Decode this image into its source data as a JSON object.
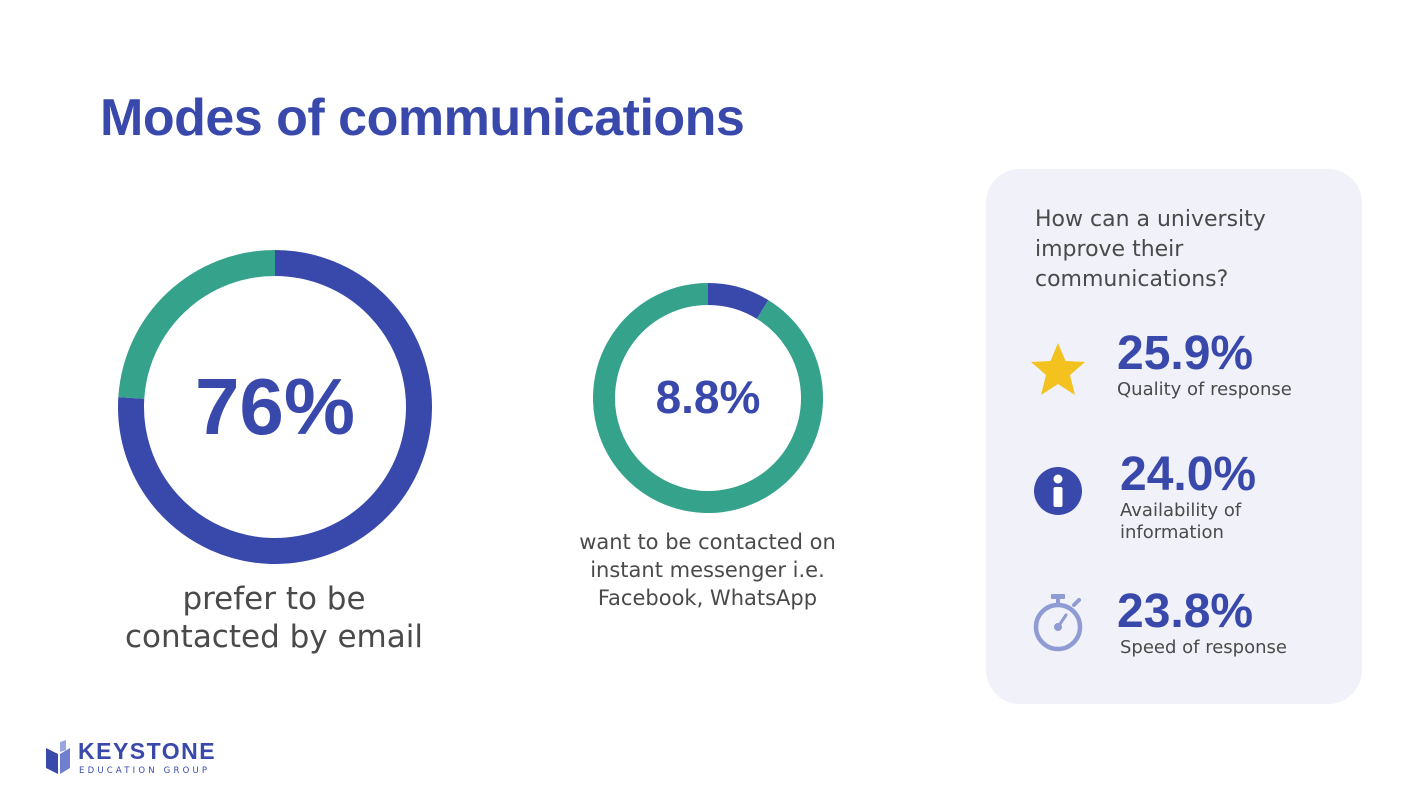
{
  "title": "Modes of communications",
  "chart_data": [
    {
      "type": "pie",
      "donut": true,
      "center_label": "76%",
      "caption": "prefer to be contacted by email",
      "caption_lines": [
        "prefer to be",
        "contacted by email"
      ],
      "values": [
        76,
        24
      ],
      "colors": [
        "#3949ab",
        "#35a38c"
      ]
    },
    {
      "type": "pie",
      "donut": true,
      "center_label": "8.8%",
      "caption": "want to be contacted on instant messenger i.e. Facebook, WhatsApp",
      "caption_lines": [
        "want to be contacted on",
        "instant messenger i.e.",
        "Facebook, WhatsApp"
      ],
      "values": [
        8.8,
        91.2
      ],
      "colors": [
        "#3949ab",
        "#35a38c"
      ]
    }
  ],
  "panel": {
    "question_lines": [
      "How can a university",
      "improve their",
      "communications?"
    ],
    "items": [
      {
        "value": "25.9%",
        "label_lines": [
          "Quality of response"
        ],
        "icon": "star-icon",
        "icon_color": "#f3c21f"
      },
      {
        "value": "24.0%",
        "label_lines": [
          "Availability of",
          "information"
        ],
        "icon": "info-icon",
        "icon_color": "#3949ab"
      },
      {
        "value": "23.8%",
        "label_lines": [
          "Speed of response"
        ],
        "icon": "stopwatch-icon",
        "icon_color": "#8f9bd3"
      }
    ]
  },
  "logo": {
    "name": "KEYSTONE",
    "sub": "EDUCATION GROUP"
  },
  "colors": {
    "primary": "#3949ab",
    "secondary": "#35a38c",
    "panel_bg": "#f0f1f9",
    "text": "#4a4a4a"
  }
}
